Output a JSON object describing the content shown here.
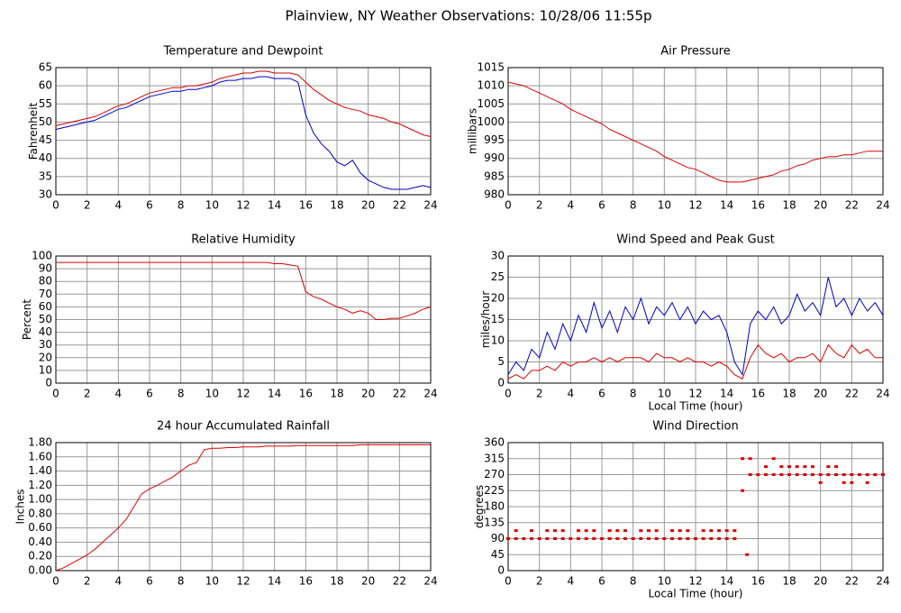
{
  "title": "Plainview, NY Weather Observations: 10/28/06 11:55p",
  "chart_data": [
    {
      "type": "line",
      "title": "Temperature and Dewpoint",
      "ylabel": "Fahrenheit",
      "x": [
        0,
        0.5,
        1,
        1.5,
        2,
        2.5,
        3,
        3.5,
        4,
        4.5,
        5,
        5.5,
        6,
        6.5,
        7,
        7.5,
        8,
        8.5,
        9,
        9.5,
        10,
        10.5,
        11,
        11.5,
        12,
        12.5,
        13,
        13.5,
        14,
        14.5,
        15,
        15.5,
        16,
        16.5,
        17,
        17.5,
        18,
        18.5,
        19,
        19.5,
        20,
        20.5,
        21,
        21.5,
        22,
        22.5,
        23,
        23.5,
        24
      ],
      "xlim": [
        0,
        24
      ],
      "xticks": [
        0,
        2,
        4,
        6,
        8,
        10,
        12,
        14,
        16,
        18,
        20,
        22,
        24
      ],
      "ylim": [
        30,
        65
      ],
      "yticks": [
        30,
        35,
        40,
        45,
        50,
        55,
        60,
        65
      ],
      "grid": true,
      "series": [
        {
          "color": "#dd0000",
          "values": [
            49,
            49.5,
            50,
            50.5,
            51,
            51.5,
            52.5,
            53.5,
            54.5,
            55,
            56,
            57,
            58,
            58.5,
            59,
            59.5,
            59.5,
            60,
            60,
            60.5,
            61,
            62,
            62.5,
            63,
            63.5,
            63.5,
            64,
            64,
            63.5,
            63.5,
            63.5,
            63,
            61,
            59,
            57.5,
            56,
            55,
            54,
            53.5,
            53,
            52,
            51.5,
            51,
            50,
            49.5,
            48.5,
            47.5,
            46.5,
            46
          ]
        },
        {
          "color": "#0000cc",
          "values": [
            48,
            48.5,
            49,
            49.5,
            50,
            50.5,
            51.5,
            52.5,
            53.5,
            54,
            55,
            56,
            57,
            57.5,
            58,
            58.5,
            58.5,
            59,
            59,
            59.5,
            60,
            61,
            61.5,
            61.5,
            62,
            62,
            62.5,
            62.5,
            62,
            62,
            62,
            61,
            52,
            47,
            44,
            42,
            39,
            38,
            39.5,
            36,
            34,
            33,
            32,
            31.5,
            31.5,
            31.5,
            32,
            32.5,
            32
          ]
        }
      ]
    },
    {
      "type": "line",
      "title": "Air Pressure",
      "ylabel": "millibars",
      "x": [
        0,
        0.5,
        1,
        1.5,
        2,
        2.5,
        3,
        3.5,
        4,
        4.5,
        5,
        5.5,
        6,
        6.5,
        7,
        7.5,
        8,
        8.5,
        9,
        9.5,
        10,
        10.5,
        11,
        11.5,
        12,
        12.5,
        13,
        13.5,
        14,
        14.5,
        15,
        15.5,
        16,
        16.5,
        17,
        17.5,
        18,
        18.5,
        19,
        19.5,
        20,
        20.5,
        21,
        21.5,
        22,
        22.5,
        23,
        23.5,
        24
      ],
      "xlim": [
        0,
        24
      ],
      "xticks": [
        0,
        2,
        4,
        6,
        8,
        10,
        12,
        14,
        16,
        18,
        20,
        22,
        24
      ],
      "ylim": [
        980,
        1015
      ],
      "yticks": [
        980,
        985,
        990,
        995,
        1000,
        1005,
        1010,
        1015
      ],
      "grid": true,
      "series": [
        {
          "color": "#dd0000",
          "values": [
            1011,
            1010.5,
            1010,
            1009,
            1008,
            1007,
            1006,
            1005,
            1003.5,
            1002.5,
            1001.5,
            1000.5,
            999.5,
            998,
            997,
            996,
            995,
            994,
            993,
            992,
            990.5,
            989.5,
            988.5,
            987.5,
            987,
            986,
            985,
            984,
            983.5,
            983.5,
            983.5,
            984,
            984.5,
            985,
            985.5,
            986.5,
            987,
            988,
            988.5,
            989.5,
            990,
            990.5,
            990.5,
            991,
            991,
            991.5,
            992,
            992,
            992
          ]
        }
      ]
    },
    {
      "type": "line",
      "title": "Relative Humidity",
      "ylabel": "Percent",
      "x": [
        0,
        0.5,
        1,
        1.5,
        2,
        2.5,
        3,
        3.5,
        4,
        4.5,
        5,
        5.5,
        6,
        6.5,
        7,
        7.5,
        8,
        8.5,
        9,
        9.5,
        10,
        10.5,
        11,
        11.5,
        12,
        12.5,
        13,
        13.5,
        14,
        14.5,
        15,
        15.5,
        16,
        16.5,
        17,
        17.5,
        18,
        18.5,
        19,
        19.5,
        20,
        20.5,
        21,
        21.5,
        22,
        22.5,
        23,
        23.5,
        24
      ],
      "xlim": [
        0,
        24
      ],
      "xticks": [
        0,
        2,
        4,
        6,
        8,
        10,
        12,
        14,
        16,
        18,
        20,
        22,
        24
      ],
      "ylim": [
        0,
        100
      ],
      "yticks": [
        0,
        10,
        20,
        30,
        40,
        50,
        60,
        70,
        80,
        90,
        100
      ],
      "grid": true,
      "series": [
        {
          "color": "#dd0000",
          "values": [
            95,
            95,
            95,
            95,
            95,
            95,
            95,
            95,
            95,
            95,
            95,
            95,
            95,
            95,
            95,
            95,
            95,
            95,
            95,
            95,
            95,
            95,
            95,
            95,
            95,
            95,
            95,
            95,
            94,
            94,
            93,
            92,
            72,
            68,
            66,
            63,
            60,
            58,
            55,
            57,
            55,
            50,
            50,
            51,
            51,
            53,
            55,
            58,
            60
          ]
        }
      ]
    },
    {
      "type": "line",
      "title": "Wind Speed and Peak Gust",
      "ylabel": "miles/hour",
      "xlabel": "Local Time (hour)",
      "x": [
        0,
        0.5,
        1,
        1.5,
        2,
        2.5,
        3,
        3.5,
        4,
        4.5,
        5,
        5.5,
        6,
        6.5,
        7,
        7.5,
        8,
        8.5,
        9,
        9.5,
        10,
        10.5,
        11,
        11.5,
        12,
        12.5,
        13,
        13.5,
        14,
        14.5,
        15,
        15.5,
        16,
        16.5,
        17,
        17.5,
        18,
        18.5,
        19,
        19.5,
        20,
        20.5,
        21,
        21.5,
        22,
        22.5,
        23,
        23.5,
        24
      ],
      "xlim": [
        0,
        24
      ],
      "xticks": [
        0,
        2,
        4,
        6,
        8,
        10,
        12,
        14,
        16,
        18,
        20,
        22,
        24
      ],
      "ylim": [
        0,
        30
      ],
      "yticks": [
        0,
        5,
        10,
        15,
        20,
        25,
        30
      ],
      "grid": true,
      "series": [
        {
          "color": "#0000cc",
          "values": [
            2,
            5,
            3,
            8,
            6,
            12,
            8,
            14,
            10,
            16,
            12,
            19,
            13,
            17,
            12,
            18,
            15,
            20,
            14,
            18,
            16,
            19,
            15,
            18,
            14,
            17,
            15,
            16,
            12,
            5,
            2,
            14,
            17,
            15,
            18,
            14,
            16,
            21,
            17,
            19,
            16,
            25,
            18,
            20,
            16,
            20,
            17,
            19,
            16
          ]
        },
        {
          "color": "#dd0000",
          "values": [
            1,
            2,
            1,
            3,
            3,
            4,
            3,
            5,
            4,
            5,
            5,
            6,
            5,
            6,
            5,
            6,
            6,
            6,
            5,
            7,
            6,
            6,
            5,
            6,
            5,
            5,
            4,
            5,
            4,
            2,
            1,
            6,
            9,
            7,
            6,
            7,
            5,
            6,
            6,
            7,
            5,
            9,
            7,
            6,
            9,
            7,
            8,
            6,
            6
          ]
        }
      ]
    },
    {
      "type": "line",
      "title": "24 hour Accumulated Rainfall",
      "ylabel": "Inches",
      "x": [
        0,
        0.5,
        1,
        1.5,
        2,
        2.5,
        3,
        3.5,
        4,
        4.5,
        5,
        5.5,
        6,
        6.5,
        7,
        7.5,
        8,
        8.5,
        9,
        9.5,
        10,
        10.5,
        11,
        11.5,
        12,
        12.5,
        13,
        13.5,
        14,
        14.5,
        15,
        15.5,
        16,
        16.5,
        17,
        17.5,
        18,
        18.5,
        19,
        19.5,
        20,
        20.5,
        21,
        21.5,
        22,
        22.5,
        23,
        23.5,
        24
      ],
      "xlim": [
        0,
        24
      ],
      "xticks": [
        0,
        2,
        4,
        6,
        8,
        10,
        12,
        14,
        16,
        18,
        20,
        22,
        24
      ],
      "ylim": [
        0,
        1.8
      ],
      "yticks": [
        {
          "value": 0,
          "label": "0.00"
        },
        {
          "value": 0.2,
          "label": "0.20"
        },
        {
          "value": 0.4,
          "label": "0.40"
        },
        {
          "value": 0.6,
          "label": "0.60"
        },
        {
          "value": 0.8,
          "label": "0.80"
        },
        {
          "value": 1,
          "label": "1.00"
        },
        {
          "value": 1.2,
          "label": "1.20"
        },
        {
          "value": 1.4,
          "label": "1.40"
        },
        {
          "value": 1.6,
          "label": "1.60"
        },
        {
          "value": 1.8,
          "label": "1.80"
        }
      ],
      "grid": true,
      "series": [
        {
          "color": "#dd0000",
          "values": [
            0,
            0.04,
            0.1,
            0.16,
            0.22,
            0.3,
            0.4,
            0.5,
            0.6,
            0.72,
            0.9,
            1.08,
            1.15,
            1.2,
            1.26,
            1.32,
            1.4,
            1.48,
            1.52,
            1.7,
            1.72,
            1.72,
            1.73,
            1.73,
            1.74,
            1.74,
            1.74,
            1.75,
            1.75,
            1.75,
            1.75,
            1.76,
            1.76,
            1.76,
            1.76,
            1.76,
            1.76,
            1.76,
            1.76,
            1.77,
            1.77,
            1.77,
            1.77,
            1.77,
            1.77,
            1.77,
            1.77,
            1.77,
            1.77
          ]
        }
      ]
    },
    {
      "type": "scatter",
      "title": "Wind Direction",
      "ylabel": "degrees",
      "xlabel": "Local Time (hour)",
      "xlim": [
        0,
        24
      ],
      "xticks": [
        0,
        2,
        4,
        6,
        8,
        10,
        12,
        14,
        16,
        18,
        20,
        22,
        24
      ],
      "ylim": [
        0,
        360
      ],
      "yticks": [
        0,
        45,
        90,
        135,
        180,
        225,
        270,
        315,
        360
      ],
      "grid": true,
      "series": [
        {
          "color": "#dd0000",
          "x": [
            0,
            0.5,
            1,
            1.5,
            2,
            2.5,
            3,
            3.5,
            4,
            4.5,
            5,
            5.5,
            6,
            6.5,
            7,
            7.5,
            8,
            8.5,
            9,
            9.5,
            10,
            10.5,
            11,
            11.5,
            12,
            12.5,
            13,
            13.5,
            14,
            14.5,
            15,
            15.5,
            16,
            16.5,
            17,
            17.5,
            18,
            18.5,
            19,
            19.5,
            20,
            20.5,
            21,
            21.5,
            22,
            22.5,
            23,
            23.5,
            24
          ],
          "values": [
            90,
            90,
            90,
            90,
            90,
            90,
            90,
            90,
            90,
            90,
            90,
            90,
            90,
            90,
            90,
            90,
            90,
            90,
            90,
            90,
            90,
            90,
            90,
            90,
            90,
            90,
            90,
            90,
            90,
            90,
            225,
            270,
            270,
            270,
            270,
            270,
            270,
            270,
            270,
            270,
            270,
            270,
            270,
            270,
            270,
            270,
            270,
            270,
            270
          ]
        },
        {
          "color": "#dd0000",
          "x": [
            0.5,
            1.5,
            2.5,
            3,
            3.5,
            4.5,
            5,
            5.5,
            6.5,
            7,
            7.5,
            8.5,
            9,
            9.5,
            10.5,
            11,
            11.5,
            12.5,
            13,
            13.5,
            14,
            14.5,
            15,
            15.3,
            15.5,
            16.5,
            17,
            17.5,
            18,
            18.5,
            19,
            19.5,
            20,
            20.5,
            21,
            21.5,
            22,
            23
          ],
          "values": [
            112.5,
            112.5,
            112.5,
            112.5,
            112.5,
            112.5,
            112.5,
            112.5,
            112.5,
            112.5,
            112.5,
            112.5,
            112.5,
            112.5,
            112.5,
            112.5,
            112.5,
            112.5,
            112.5,
            112.5,
            112.5,
            112.5,
            315,
            45,
            315,
            292.5,
            315,
            292.5,
            292.5,
            292.5,
            292.5,
            292.5,
            247.5,
            292.5,
            292.5,
            247.5,
            247.5,
            247.5
          ]
        }
      ]
    }
  ]
}
